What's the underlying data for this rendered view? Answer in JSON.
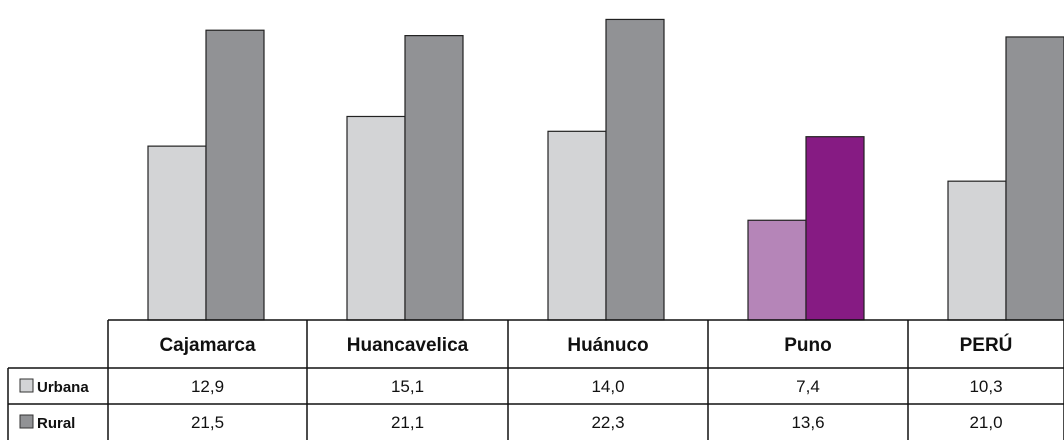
{
  "chart_data": {
    "type": "bar",
    "categories": [
      "Cajamarca",
      "Huancavelica",
      "Huánuco",
      "Puno",
      "PERÚ"
    ],
    "series": [
      {
        "name": "Urbana",
        "values": [
          12.9,
          15.1,
          14.0,
          7.4,
          10.3
        ],
        "value_labels": [
          "12,9",
          "15,1",
          "14,0",
          "7,4",
          "10,3"
        ],
        "color": "#d3d4d6"
      },
      {
        "name": "Rural",
        "values": [
          21.5,
          21.1,
          22.3,
          13.6,
          21.0
        ],
        "value_labels": [
          "21,5",
          "21,1",
          "22,3",
          "13,6",
          "21,0"
        ],
        "color": "#919295"
      }
    ],
    "highlight": {
      "category": "Puno",
      "colors": [
        "#b585b8",
        "#861b83"
      ]
    },
    "ylim": [
      0,
      23
    ],
    "grid": false,
    "legend": "table-left"
  }
}
